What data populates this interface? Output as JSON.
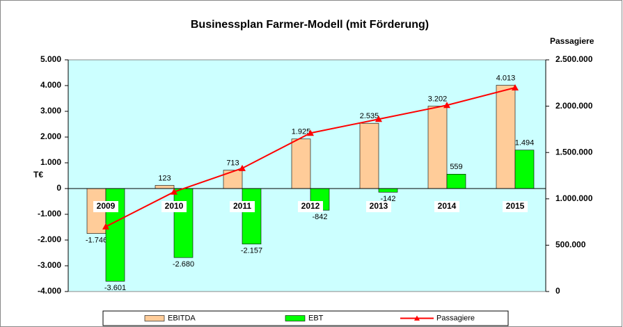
{
  "chart_data": {
    "type": "bar",
    "title": "Businessplan Farmer-Modell (mit Förderung)",
    "y_label": "T€",
    "y2_label": "Passagiere",
    "categories": [
      "2009",
      "2010",
      "2011",
      "2012",
      "2013",
      "2014",
      "2015"
    ],
    "series": [
      {
        "name": "EBITDA",
        "color": "#ffcc99",
        "type": "bar",
        "values": [
          -1746,
          123,
          713,
          1925,
          2535,
          3202,
          4013
        ],
        "value_labels": [
          "-1.746",
          "123",
          "713",
          "1.925",
          "2.535",
          "3.202",
          "4.013"
        ]
      },
      {
        "name": "EBT",
        "color": "#00ff00",
        "type": "bar",
        "values": [
          -3601,
          -2680,
          -2157,
          -842,
          -142,
          559,
          1494
        ],
        "value_labels": [
          "-3.601",
          "-2.680",
          "-2.157",
          "-842",
          "-142",
          "559",
          "1.494"
        ]
      },
      {
        "name": "Passagiere",
        "color": "#ff0000",
        "type": "line",
        "axis": "y2",
        "values": [
          700000,
          1075000,
          1330000,
          1710000,
          1860000,
          2010000,
          2200000
        ]
      }
    ],
    "ylim": [
      -4000,
      5000
    ],
    "yticks": [
      {
        "value": -4000,
        "label": "-4.000"
      },
      {
        "value": -3000,
        "label": "-3.000"
      },
      {
        "value": -2000,
        "label": "-2.000"
      },
      {
        "value": -1000,
        "label": "-1.000"
      },
      0,
      {
        "value": 1000,
        "label": "1.000"
      },
      {
        "value": 2000,
        "label": "2.000"
      },
      {
        "value": 3000,
        "label": "3.000"
      },
      {
        "value": 4000,
        "label": "4.000"
      },
      {
        "value": 5000,
        "label": "5.000"
      }
    ],
    "y2lim": [
      0,
      2500000
    ],
    "y2ticks": [
      0,
      {
        "value": 500000,
        "label": "500.000"
      },
      {
        "value": 1000000,
        "label": "1.000.000"
      },
      {
        "value": 1500000,
        "label": "1.500.000"
      },
      {
        "value": 2000000,
        "label": "2.000.000"
      },
      {
        "value": 2500000,
        "label": "2.500.000"
      }
    ],
    "plot_background": "#ccffff",
    "grid": false,
    "legend": "bottom"
  }
}
